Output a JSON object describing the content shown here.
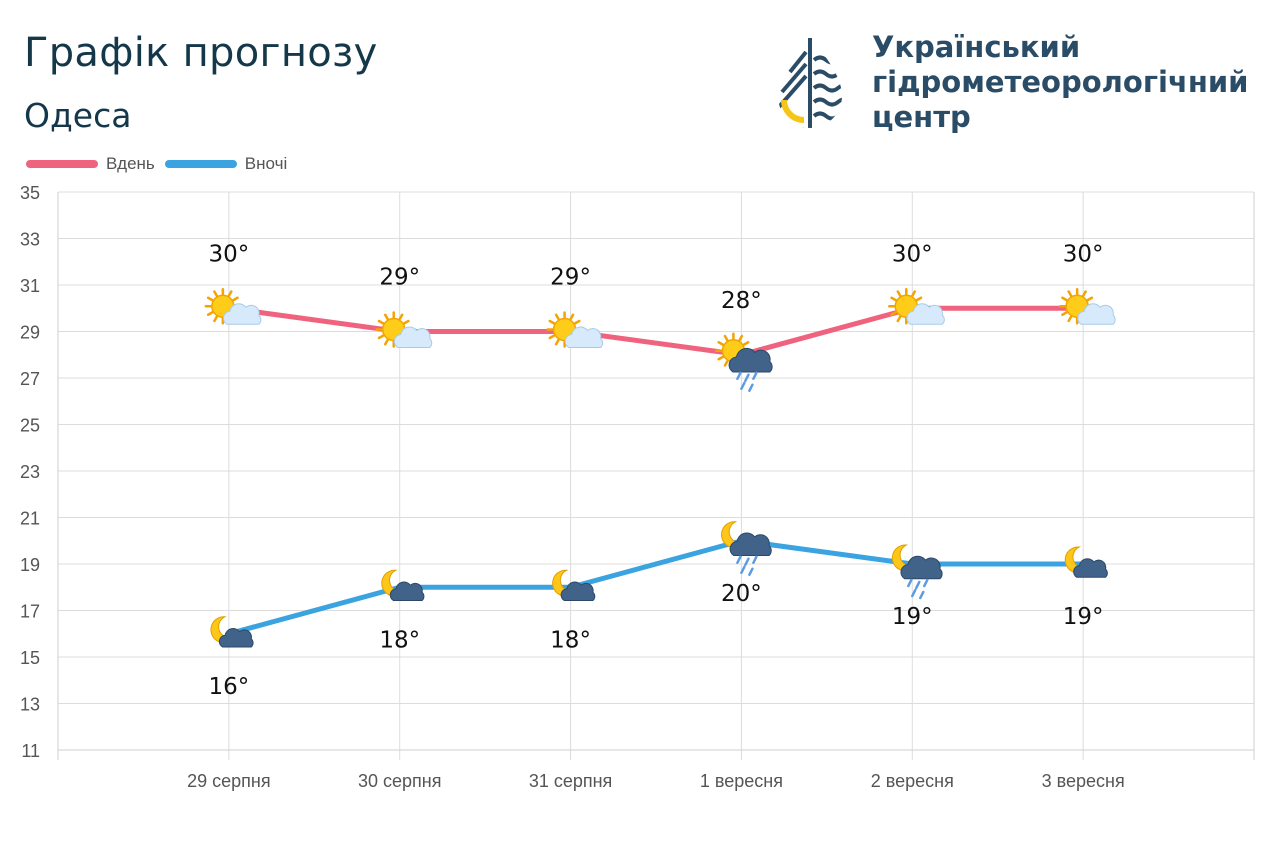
{
  "header": {
    "title": "Графік прогнозу",
    "subtitle": "Одеса"
  },
  "org": {
    "line1": "Український",
    "line2": "гідрометеорологічний",
    "line3": "центр"
  },
  "legend": {
    "day_label": "Вдень",
    "night_label": "Вночі"
  },
  "colors": {
    "day": "#f0637f",
    "night": "#3aa3e0",
    "title": "#14384a",
    "org": "#2a4c66",
    "logo_yellow": "#f5c518"
  },
  "chart_data": {
    "type": "line",
    "categories": [
      "29 серпня",
      "30 серпня",
      "31 серпня",
      "1 вересня",
      "2 вересня",
      "3 вересня"
    ],
    "series": [
      {
        "name": "Вдень",
        "values": [
          30,
          29,
          29,
          28,
          30,
          30
        ],
        "labels": [
          "30°",
          "29°",
          "29°",
          "28°",
          "30°",
          "30°"
        ],
        "icons": [
          "sun-cloud-icon",
          "sun-cloud-icon",
          "sun-cloud-icon",
          "sun-rain-cloud-icon",
          "sun-cloud-icon",
          "sun-cloud-icon"
        ]
      },
      {
        "name": "Вночі",
        "values": [
          16,
          18,
          18,
          20,
          19,
          19
        ],
        "labels": [
          "16°",
          "18°",
          "18°",
          "20°",
          "19°",
          "19°"
        ],
        "icons": [
          "moon-cloud-icon",
          "moon-cloud-icon",
          "moon-cloud-icon",
          "moon-rain-cloud-icon",
          "moon-rain-cloud-icon",
          "moon-cloud-icon"
        ]
      }
    ],
    "ylim": [
      11,
      35
    ],
    "yticks": [
      11,
      13,
      15,
      17,
      19,
      21,
      23,
      25,
      27,
      29,
      31,
      33,
      35
    ],
    "grid": true,
    "legend_position": "top-left"
  }
}
